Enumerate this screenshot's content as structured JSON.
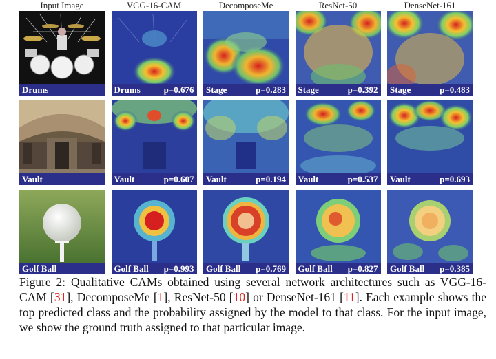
{
  "figure": {
    "column_headers": [
      "Input Image",
      "VGG-16-CAM",
      "DecomposeMe",
      "ResNet-50",
      "DenseNet-161"
    ],
    "rows": [
      {
        "input_label": "Drums",
        "predictions": [
          {
            "label": "Drums",
            "prob": "p=0.676"
          },
          {
            "label": "Stage",
            "prob": "p=0.283"
          },
          {
            "label": "Stage",
            "prob": "p=0.392"
          },
          {
            "label": "Stage",
            "prob": "p=0.483"
          }
        ]
      },
      {
        "input_label": "Vault",
        "predictions": [
          {
            "label": "Vault",
            "prob": "p=0.607"
          },
          {
            "label": "Vault",
            "prob": "p=0.194"
          },
          {
            "label": "Vault",
            "prob": "p=0.537"
          },
          {
            "label": "Vault",
            "prob": "p=0.693"
          }
        ]
      },
      {
        "input_label": "Golf Ball",
        "predictions": [
          {
            "label": "Golf Ball",
            "prob": "p=0.993"
          },
          {
            "label": "Golf Ball",
            "prob": "p=0.769"
          },
          {
            "label": "Golf Ball",
            "prob": "p=0.827"
          },
          {
            "label": "Golf Ball",
            "prob": "p=0.385"
          }
        ]
      }
    ],
    "caption": {
      "prefix": "Figure 2: Qualitative CAMs obtained using several network architectures such as VGG-16-CAM [",
      "ref1": "31",
      "mid1": "], DecomposeMe [",
      "ref2": "1",
      "mid2": "], ResNet-50 [",
      "ref3": "10",
      "mid3": "] or DenseNet-161 [",
      "ref4": "11",
      "suffix": "]. Each example shows the top predicted class and the probability assigned by the model to that class. For the input image, we show the ground truth assigned to that particular image."
    },
    "colors": {
      "caption_bar": "#2b2f8a",
      "reference_link": "#e0201c"
    }
  }
}
